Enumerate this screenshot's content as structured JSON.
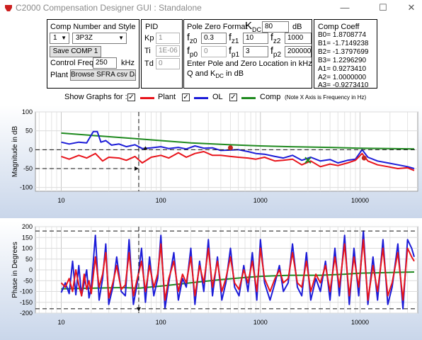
{
  "window": {
    "title": "C2000 Compensation Designer GUI : Standalone",
    "minimize": "—",
    "maximize": "☐",
    "close": "✕"
  },
  "comp": {
    "heading": "Comp Number and Style",
    "number": "1",
    "style": "3P3Z",
    "save_label": "Save COMP 1",
    "control_freq_label": "Control Freq",
    "control_freq": "250",
    "control_freq_unit": "kHz",
    "plant_label": "Plant",
    "browse_label": "Browse SFRA csv Data"
  },
  "pid": {
    "heading": "PID",
    "kp_label": "Kp",
    "kp": "1",
    "ti_label": "Ti",
    "ti": "1E-06",
    "td_label": "Td",
    "td": "0"
  },
  "pz": {
    "heading": "Pole Zero Format",
    "kdc_label": "K",
    "kdc_sub": "DC",
    "kdc": "80",
    "kdc_unit": "dB",
    "fz0_label": "f",
    "fz0_sub": "z0",
    "fz0": "0.3",
    "fz1_label": "f",
    "fz1_sub": "z1",
    "fz1": "10",
    "fz2_label": "f",
    "fz2_sub": "z2",
    "fz2": "1000",
    "fp0_label": "f",
    "fp0_sub": "p0",
    "fp0": "0",
    "fp1_label": "f",
    "fp1_sub": "p1",
    "fp1": "3",
    "fp2_label": "f",
    "fp2_sub": "p2",
    "fp2": "2000000",
    "note1": "Enter Pole and Zero Location in kHz",
    "note2a": "Q and K",
    "note2sub": "DC",
    "note2b": " in dB"
  },
  "coeff": {
    "heading": "Comp Coeff",
    "lines": [
      "B0= 1.8708774",
      "B1= -1.7149238",
      "B2= -1.3797699",
      "B3= 1.2296290",
      "A1= 0.9273410",
      "A2= 1.0000000",
      "A3= -0.9273410"
    ]
  },
  "legend": {
    "show_label": "Show Graphs for :",
    "plant": "Plant",
    "ol": "OL",
    "comp": "Comp",
    "note": "(Note X Axis is Frequency in Hz)",
    "check": "✓",
    "colors": {
      "plant": "#e8141b",
      "ol": "#1c1cd8",
      "comp": "#1f8a1f"
    }
  },
  "mag_plot": {
    "ylabel": "Magnitude in dB",
    "ylim": [
      -110,
      100
    ],
    "yticks": [
      "100",
      "50",
      "0",
      "-50",
      "-100"
    ],
    "xticks": [
      "10",
      "100",
      "1000",
      "10000"
    ],
    "cursor_freq": 60,
    "cursor_level": -50
  },
  "phase_plot": {
    "ylabel": "Phase in Degrees",
    "ylim": [
      -200,
      200
    ],
    "yticks": [
      "200",
      "150",
      "100",
      "50",
      "0",
      "-50",
      "-100",
      "-150",
      "-200"
    ],
    "xticks": [
      "10",
      "100",
      "1000",
      "10000"
    ],
    "cursor_freq": 60
  },
  "chart_data": [
    {
      "type": "line",
      "xscale": "log",
      "xlim": [
        5.5,
        38000
      ],
      "ylim": [
        -110,
        100
      ],
      "ylabel": "Magnitude in dB",
      "series": [
        {
          "name": "Comp",
          "color": "#1f8a1f",
          "x": [
            10,
            20,
            50,
            100,
            200,
            500,
            1000,
            2000,
            5000,
            10000,
            20000,
            35000
          ],
          "y": [
            44,
            38,
            30,
            24,
            18,
            13,
            10,
            8,
            6,
            4,
            3,
            2
          ]
        },
        {
          "name": "OL",
          "color": "#1c1cd8",
          "x": [
            10,
            12,
            15,
            18,
            21,
            23,
            25,
            28,
            32,
            38,
            45,
            55,
            65,
            80,
            100,
            120,
            150,
            180,
            220,
            270,
            330,
            400,
            500,
            600,
            750,
            900,
            1100,
            1400,
            1700,
            2100,
            2600,
            3200,
            4000,
            5000,
            6000,
            7500,
            9000,
            10500,
            12000,
            15000,
            19000,
            24000,
            30000,
            35000
          ],
          "y": [
            20,
            15,
            20,
            18,
            48,
            48,
            20,
            24,
            12,
            15,
            8,
            13,
            3,
            5,
            8,
            3,
            6,
            2,
            10,
            4,
            5,
            -2,
            -1,
            0,
            -5,
            -10,
            -12,
            -18,
            -22,
            -15,
            -28,
            -20,
            -30,
            -26,
            -35,
            -28,
            -25,
            0,
            -20,
            -30,
            -35,
            -40,
            -45,
            -50
          ]
        },
        {
          "name": "Plant",
          "color": "#e8141b",
          "x": [
            10,
            12,
            15,
            18,
            22,
            26,
            30,
            38,
            45,
            55,
            65,
            80,
            100,
            120,
            150,
            180,
            220,
            270,
            330,
            400,
            500,
            600,
            750,
            900,
            1100,
            1400,
            1700,
            2100,
            2600,
            3200,
            4000,
            5000,
            6000,
            7500,
            9000,
            10500,
            12000,
            15000,
            19000,
            24000,
            30000,
            35000
          ],
          "y": [
            -18,
            -25,
            -15,
            -22,
            -10,
            -30,
            -20,
            -22,
            -28,
            -18,
            -35,
            -20,
            -15,
            -22,
            -8,
            -20,
            -10,
            -5,
            -15,
            -15,
            -18,
            -20,
            -22,
            -25,
            -20,
            -30,
            -28,
            -25,
            -40,
            -30,
            -45,
            -38,
            -42,
            -35,
            -28,
            -10,
            -30,
            -40,
            -45,
            -50,
            -48,
            -55
          ]
        }
      ]
    },
    {
      "type": "line",
      "xscale": "log",
      "xlim": [
        5.5,
        38000
      ],
      "ylim": [
        -200,
        200
      ],
      "ylabel": "Phase in Degrees",
      "series": [
        {
          "name": "Comp",
          "color": "#1f8a1f",
          "x": [
            10,
            20,
            40,
            60,
            100,
            200,
            400,
            700,
            1000,
            2000,
            4000,
            7000,
            10000,
            20000,
            35000
          ],
          "y": [
            -88,
            -85,
            -82,
            -85,
            -75,
            -60,
            -45,
            -35,
            -30,
            -25,
            -25,
            -20,
            -15,
            -12,
            -10
          ]
        },
        {
          "name": "OL",
          "color": "#1c1cd8",
          "x": [
            10,
            11,
            12,
            13,
            14,
            15,
            16,
            17,
            18,
            19,
            20,
            22,
            24,
            26,
            28,
            30,
            33,
            36,
            40,
            44,
            48,
            53,
            58,
            64,
            70,
            77,
            85,
            93,
            100,
            110,
            120,
            135,
            150,
            165,
            180,
            200,
            220,
            245,
            270,
            300,
            330,
            370,
            410,
            450,
            500,
            550,
            610,
            680,
            750,
            830,
            920,
            1000,
            1100,
            1250,
            1400,
            1550,
            1700,
            1900,
            2100,
            2350,
            2600,
            2900,
            3200,
            3600,
            4000,
            4500,
            5000,
            5600,
            6200,
            7000,
            7800,
            8700,
            9700,
            10800,
            12000,
            13500,
            15000,
            17000,
            19000,
            21000,
            24000,
            27000,
            30000,
            33000,
            35000
          ],
          "y": [
            -105,
            -60,
            -110,
            40,
            -115,
            20,
            -120,
            -60,
            0,
            -130,
            -80,
            160,
            -140,
            -40,
            120,
            -160,
            -80,
            60,
            -100,
            -120,
            140,
            -160,
            -60,
            100,
            -150,
            60,
            -120,
            -40,
            160,
            -180,
            -60,
            80,
            -140,
            -40,
            -80,
            100,
            -160,
            40,
            -100,
            140,
            -120,
            60,
            -140,
            -60,
            100,
            -80,
            -120,
            20,
            -100,
            80,
            -140,
            140,
            -60,
            -140,
            -60,
            20,
            -100,
            -60,
            120,
            -80,
            -120,
            80,
            -140,
            -40,
            -100,
            40,
            -140,
            100,
            -120,
            160,
            -160,
            100,
            -120,
            180,
            -160,
            60,
            -140,
            140,
            -160,
            -80,
            120,
            -180,
            140,
            100,
            60
          ]
        },
        {
          "name": "Plant",
          "color": "#e8141b",
          "x": [
            10,
            11,
            12,
            13,
            14,
            15,
            16,
            17,
            18,
            19,
            20,
            22,
            24,
            26,
            28,
            30,
            33,
            36,
            40,
            44,
            48,
            53,
            58,
            64,
            70,
            77,
            85,
            93,
            100,
            110,
            120,
            135,
            150,
            165,
            180,
            200,
            220,
            245,
            270,
            300,
            330,
            370,
            410,
            450,
            500,
            550,
            610,
            680,
            750,
            830,
            920,
            1000,
            1100,
            1250,
            1400,
            1550,
            1700,
            1900,
            2100,
            2350,
            2600,
            2900,
            3200,
            3600,
            4000,
            4500,
            5000,
            5600,
            6200,
            7000,
            7800,
            8700,
            9700,
            10800,
            12000,
            13500,
            15000,
            17000,
            19000,
            21000,
            24000,
            27000,
            30000,
            33000,
            35000
          ],
          "y": [
            -60,
            -80,
            -40,
            -100,
            0,
            -70,
            -120,
            -20,
            -90,
            -50,
            -110,
            60,
            -80,
            -20,
            80,
            -130,
            -60,
            20,
            -90,
            -70,
            80,
            -120,
            -40,
            40,
            -100,
            20,
            -80,
            -20,
            120,
            -140,
            -40,
            40,
            -100,
            -20,
            -60,
            60,
            -120,
            20,
            -60,
            100,
            -80,
            40,
            -100,
            -40,
            60,
            -60,
            -90,
            0,
            -60,
            40,
            -100,
            100,
            -40,
            -100,
            -40,
            0,
            -60,
            -40,
            80,
            -60,
            -80,
            40,
            -100,
            -20,
            -60,
            20,
            -100,
            60,
            -80,
            120,
            -120,
            60,
            -80,
            140,
            -140,
            20,
            -100,
            100,
            -120,
            -60,
            80,
            -140,
            100,
            60,
            40
          ]
        }
      ]
    }
  ]
}
